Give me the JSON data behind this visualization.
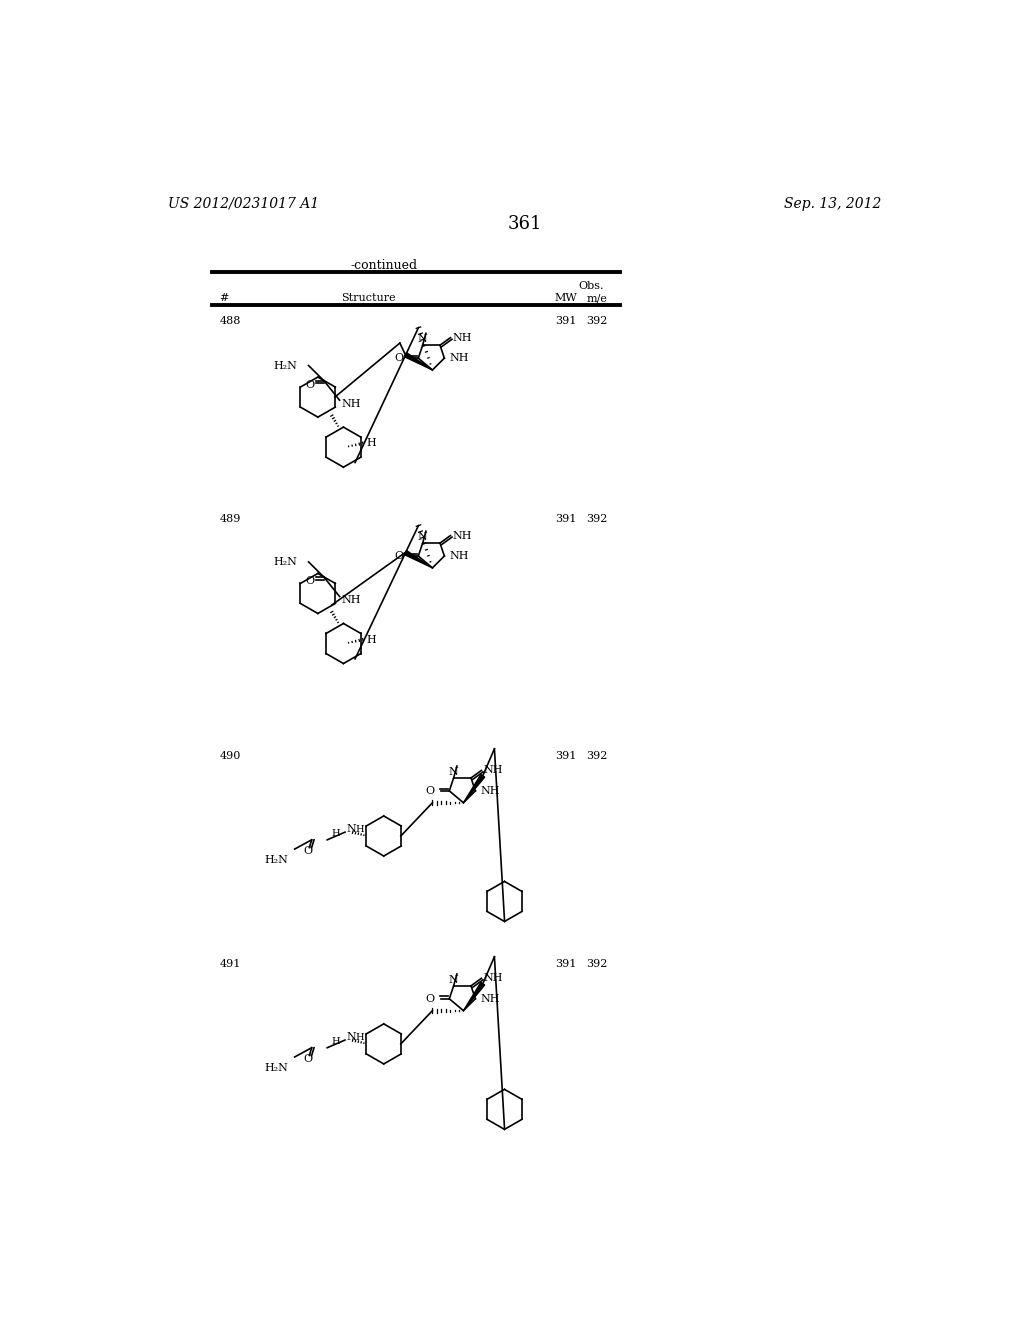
{
  "page_number": "361",
  "patent_number": "US 2012/0231017 A1",
  "patent_date": "Sep. 13, 2012",
  "continued_label": "-continued",
  "compounds": [
    {
      "number": "488",
      "mw": "391",
      "obs": "392"
    },
    {
      "number": "489",
      "mw": "391",
      "obs": "392"
    },
    {
      "number": "490",
      "mw": "391",
      "obs": "392"
    },
    {
      "number": "491",
      "mw": "391",
      "obs": "392"
    }
  ],
  "bg_color": "#ffffff",
  "text_color": "#000000"
}
